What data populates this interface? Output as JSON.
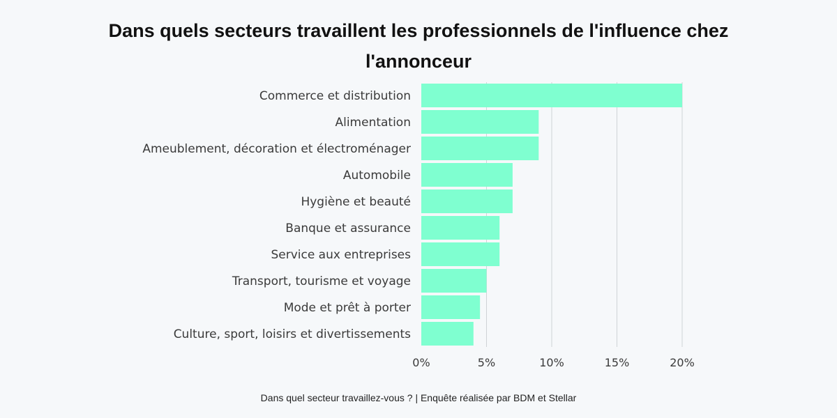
{
  "chart_data": {
    "type": "bar",
    "orientation": "horizontal",
    "title": "Dans quels secteurs travaillent les professionnels de l'influence chez l'annonceur",
    "source": "Dans quel secteur travaillez-vous ? | Enquête réalisée par BDM et Stellar",
    "categories": [
      "Commerce et distribution",
      "Alimentation",
      "Ameublement, décoration et électroménager",
      "Automobile",
      "Hygiène et beauté",
      "Banque et assurance",
      "Service aux entreprises",
      "Transport, tourisme et voyage",
      "Mode et prêt à porter",
      "Culture, sport, loisirs et divertissements"
    ],
    "values": [
      20,
      9,
      9,
      7,
      7,
      6,
      6,
      5,
      4.5,
      4
    ],
    "x_ticks": [
      0,
      5,
      10,
      15,
      20
    ],
    "x_tick_labels": [
      "0%",
      "5%",
      "10%",
      "15%",
      "20%"
    ],
    "xlim": [
      0,
      20
    ],
    "grid": "vertical",
    "bar_color": "#7fffd0",
    "grid_color": "#cfd3d6"
  }
}
